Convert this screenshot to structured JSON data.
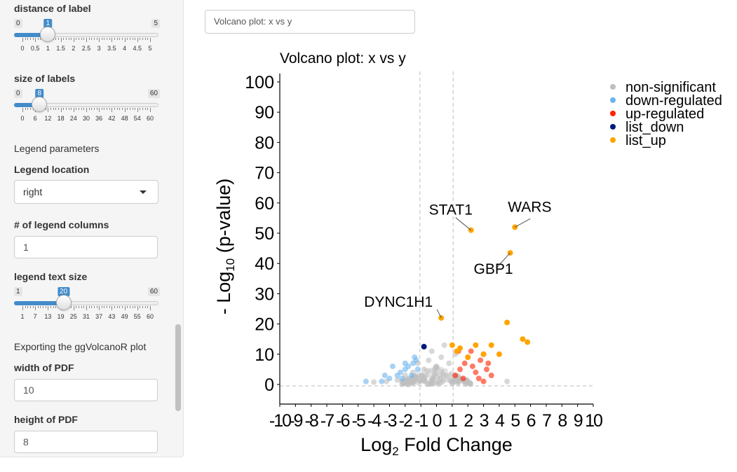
{
  "sidebar": {
    "dist_label": "distance of label",
    "dist_slider": {
      "min": "0",
      "max": "5",
      "value": "1",
      "value_num": 1,
      "min_num": 0,
      "max_num": 5,
      "ticks": [
        "0",
        "0.5",
        "1",
        "1.5",
        "2",
        "2.5",
        "3",
        "3.5",
        "4",
        "4.5",
        "5"
      ]
    },
    "size_label": "size of labels",
    "size_slider": {
      "min": "0",
      "max": "60",
      "value": "8",
      "value_num": 8,
      "min_num": 0,
      "max_num": 60,
      "ticks": [
        "0",
        "6",
        "12",
        "18",
        "24",
        "30",
        "36",
        "42",
        "48",
        "54",
        "60"
      ]
    },
    "legend_params": "Legend parameters",
    "legend_location_label": "Legend location",
    "legend_location_value": "right",
    "legend_cols_label": "# of legend columns",
    "legend_cols_value": "1",
    "legend_text_label": "legend text size",
    "legend_text_slider": {
      "min": "1",
      "max": "60",
      "value": "20",
      "value_num": 20,
      "min_num": 1,
      "max_num": 60,
      "ticks": [
        "1",
        "7",
        "13",
        "19",
        "25",
        "31",
        "37",
        "43",
        "49",
        "55",
        "60"
      ]
    },
    "export_title": "Exporting the ggVolcanoR plot",
    "width_label": "width of PDF",
    "width_value": "10",
    "height_label": "height of PDF",
    "height_value": "8"
  },
  "main": {
    "title_input": "Volcano plot: x vs y"
  },
  "chart_data": {
    "type": "scatter",
    "title": "Volcano plot: x vs y",
    "xlabel": "Log2 Fold Change",
    "ylabel": "- Log10 (p-value)",
    "xlim": [
      -10,
      10
    ],
    "ylim": [
      0,
      100
    ],
    "xticks": [
      "-10",
      "-9",
      "-8",
      "-7",
      "-6",
      "-5",
      "-4",
      "-3",
      "-2",
      "-1",
      "0",
      "1",
      "2",
      "3",
      "4",
      "5",
      "6",
      "7",
      "8",
      "9",
      "10"
    ],
    "yticks": [
      "0",
      "10",
      "20",
      "30",
      "40",
      "50",
      "60",
      "70",
      "80",
      "90",
      "100"
    ],
    "thresholds": {
      "x": [
        -1,
        1
      ],
      "y": 1.3
    },
    "legend_position": "right",
    "colors": {
      "non-significant": "#bebebe",
      "down-regulated": "#6cb4ee",
      "up-regulated": "#ff2200",
      "list_down": "#001a7a",
      "list_up": "#ffa500"
    },
    "series": [
      {
        "name": "non-significant",
        "points": [
          [
            -4,
            0.8
          ],
          [
            -3.2,
            1
          ],
          [
            -2.5,
            1.5
          ],
          [
            -2,
            3
          ],
          [
            -1.5,
            4
          ],
          [
            -0.8,
            5
          ],
          [
            -0.5,
            8
          ],
          [
            0,
            6
          ],
          [
            0.3,
            9
          ],
          [
            0.5,
            13
          ],
          [
            0.8,
            7
          ],
          [
            1.2,
            10
          ],
          [
            -0.3,
            11
          ],
          [
            4.5,
            1
          ],
          [
            -1.2,
            7
          ]
        ]
      },
      {
        "name": "down-regulated",
        "points": [
          [
            -4.5,
            1
          ],
          [
            -3.5,
            1
          ],
          [
            -3,
            2
          ],
          [
            -2.5,
            3
          ],
          [
            -2.3,
            4
          ],
          [
            -2,
            5
          ],
          [
            -1.8,
            6
          ],
          [
            -1.5,
            7
          ],
          [
            -1.3,
            8
          ],
          [
            -2.8,
            6
          ],
          [
            -1.2,
            5
          ],
          [
            -1.6,
            3
          ],
          [
            -2.2,
            2
          ],
          [
            -3.3,
            3
          ],
          [
            -1.4,
            9
          ],
          [
            -2,
            7
          ]
        ]
      },
      {
        "name": "up-regulated",
        "points": [
          [
            1.2,
            3
          ],
          [
            1.5,
            5
          ],
          [
            1.8,
            7
          ],
          [
            2,
            9
          ],
          [
            2.3,
            6
          ],
          [
            2.5,
            4
          ],
          [
            2.8,
            8
          ],
          [
            3,
            10
          ],
          [
            3.2,
            5
          ],
          [
            3.5,
            3
          ],
          [
            1.4,
            11
          ],
          [
            2.2,
            11
          ],
          [
            3.3,
            7
          ],
          [
            2.7,
            2
          ],
          [
            1.7,
            2
          ],
          [
            3,
            1
          ]
        ]
      },
      {
        "name": "list_down",
        "points": [
          [
            -0.8,
            12.5
          ]
        ]
      },
      {
        "name": "list_up",
        "points": [
          [
            0.3,
            22
          ],
          [
            2.2,
            51
          ],
          [
            5,
            52
          ],
          [
            4.7,
            43.5
          ],
          [
            4.5,
            20.5
          ],
          [
            5.5,
            15
          ],
          [
            5.8,
            14
          ],
          [
            1,
            13
          ],
          [
            1.5,
            12
          ],
          [
            2.5,
            13
          ],
          [
            3,
            10
          ],
          [
            3.5,
            13
          ],
          [
            4,
            10
          ],
          [
            2,
            9
          ],
          [
            1.3,
            11
          ]
        ]
      }
    ],
    "labels": [
      {
        "text": "STAT1",
        "x": 2.2,
        "y": 51
      },
      {
        "text": "WARS",
        "x": 5,
        "y": 52
      },
      {
        "text": "GBP1",
        "x": 4.7,
        "y": 43.5
      },
      {
        "text": "DYNC1H1",
        "x": 0.3,
        "y": 22
      }
    ]
  }
}
